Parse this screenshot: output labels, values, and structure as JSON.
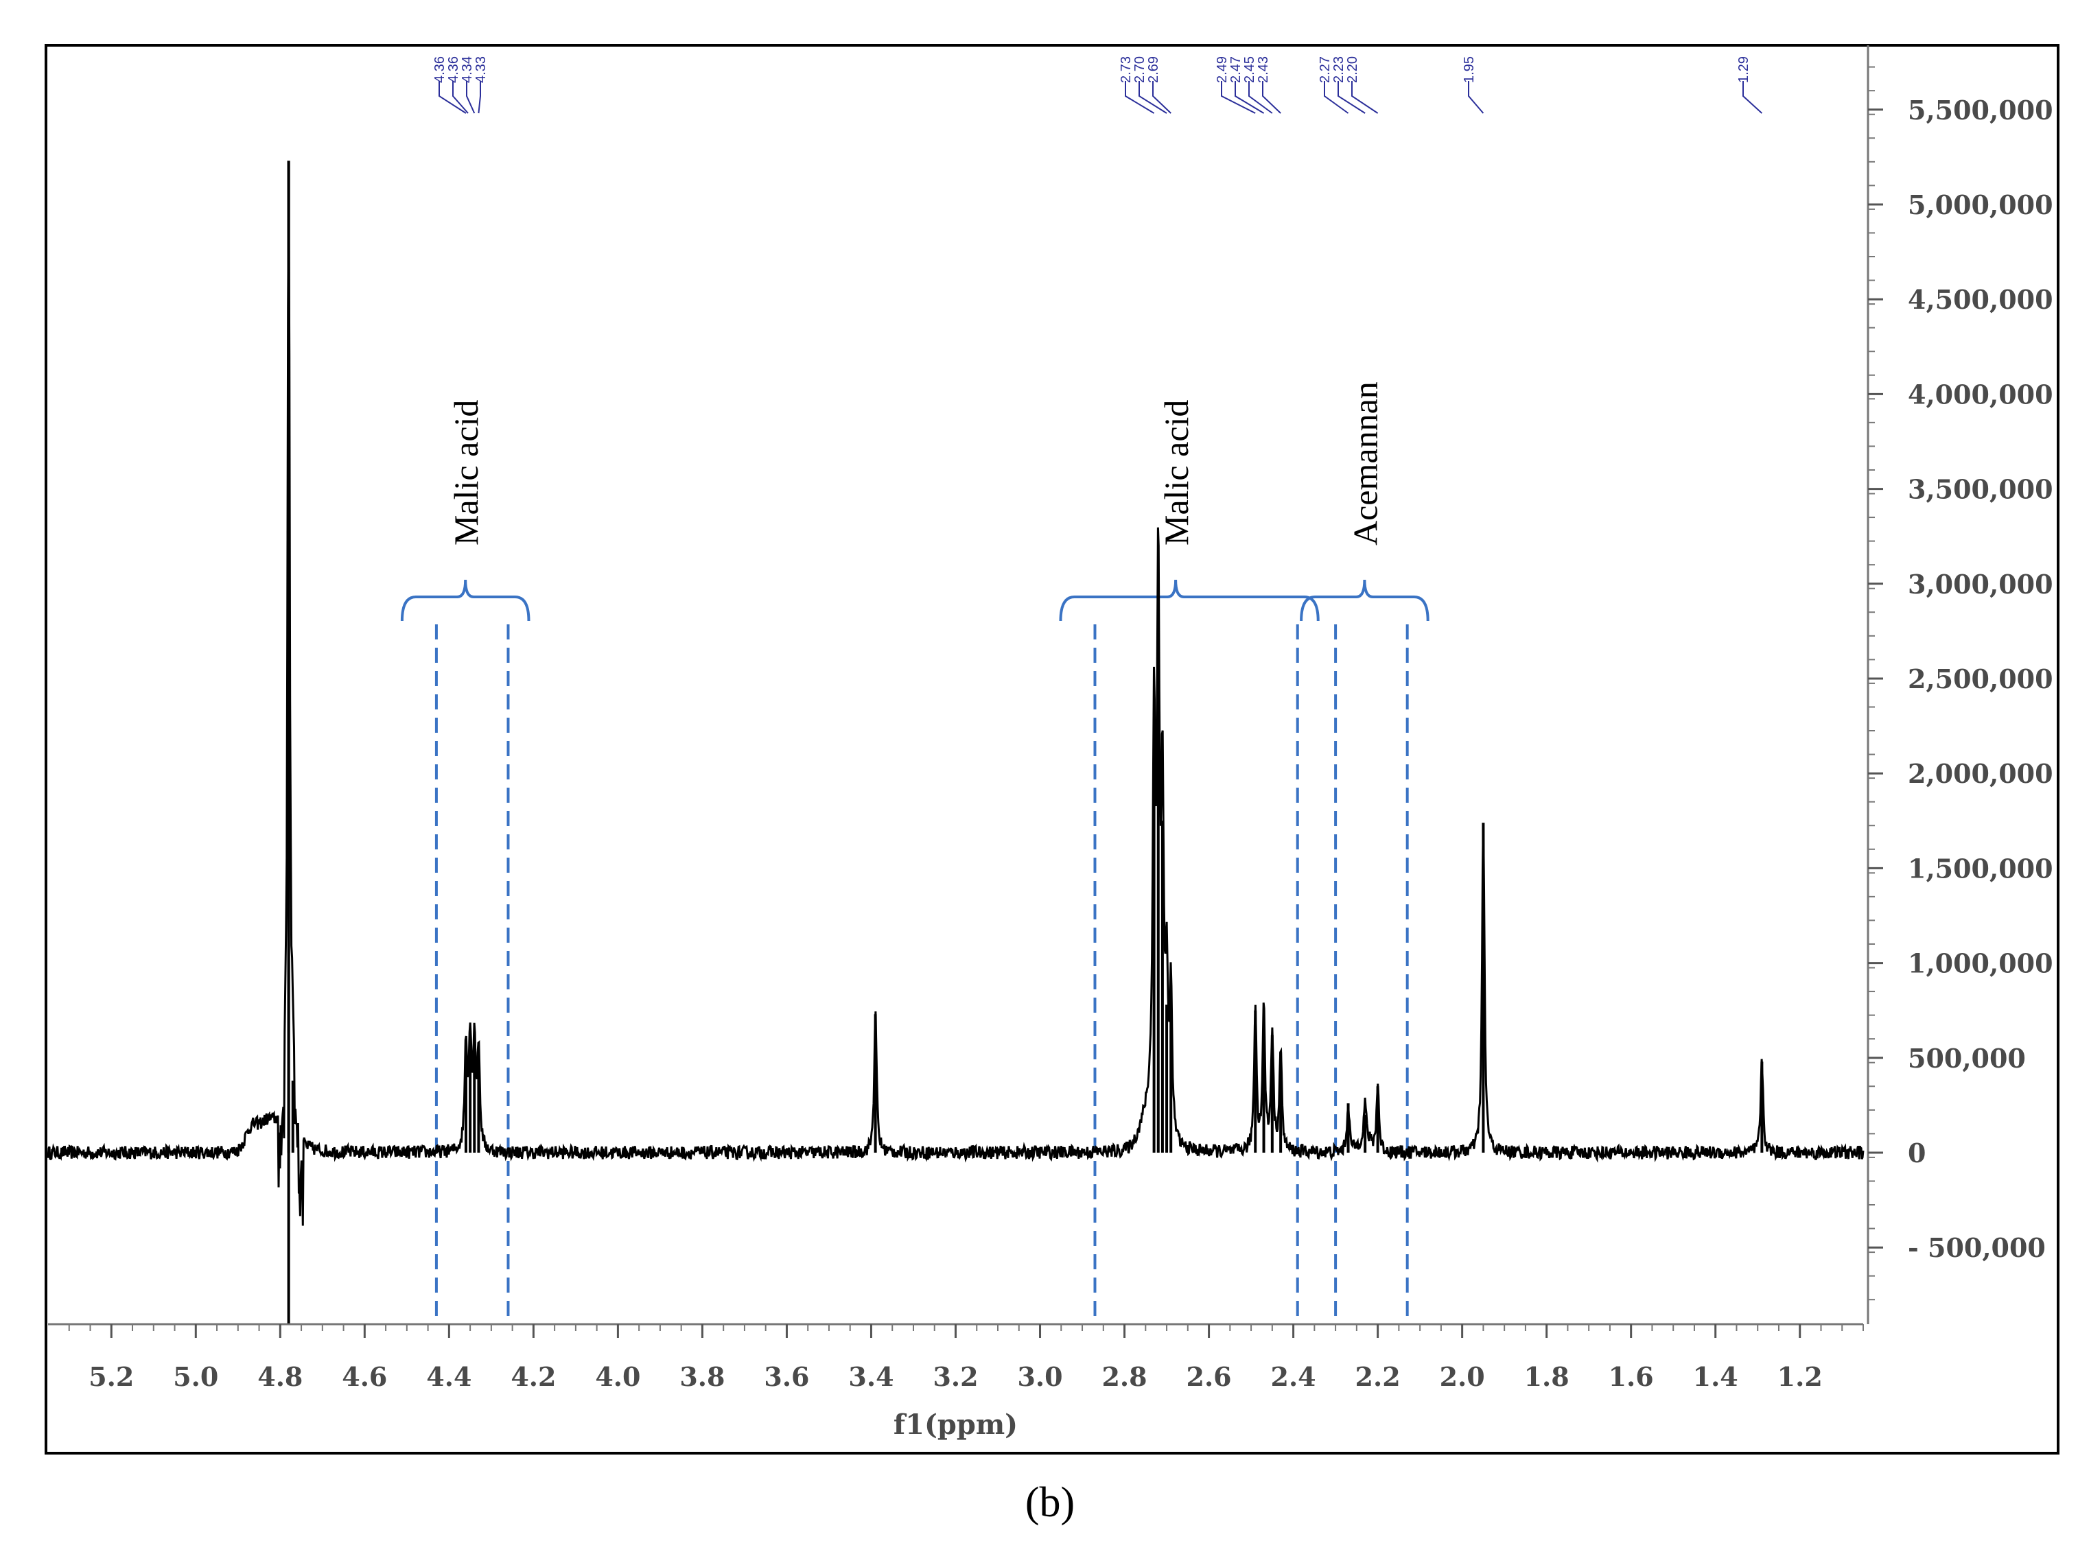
{
  "chart_data": {
    "type": "line",
    "xlabel": "f1(ppm)",
    "ylabel": "",
    "x_reversed": true,
    "xlim": [
      5.35,
      1.05
    ],
    "ylim": [
      -900000,
      5800000
    ],
    "x_ticks": [
      "5.2",
      "5.0",
      "4.8",
      "4.6",
      "4.4",
      "4.2",
      "4.0",
      "3.8",
      "3.6",
      "3.4",
      "3.2",
      "3.0",
      "2.8",
      "2.6",
      "2.4",
      "2.2",
      "2.0",
      "1.8",
      "1.6",
      "1.4",
      "1.2"
    ],
    "y_ticks": [
      "5,500,000",
      "5,000,000",
      "4,500,000",
      "4,000,000",
      "3,500,000",
      "3,000,000",
      "2,500,000",
      "2,000,000",
      "1,500,000",
      "1,000,000",
      "500,000",
      "0",
      "- 500,000"
    ],
    "y_tick_values": [
      5500000,
      5000000,
      4500000,
      4000000,
      3500000,
      3000000,
      2500000,
      2000000,
      1500000,
      1000000,
      500000,
      0,
      -500000
    ],
    "series": [
      {
        "peaks": [
          {
            "x": 4.78,
            "y": 5230000
          },
          {
            "x": 4.77,
            "y": 380000
          },
          {
            "x": 4.36,
            "y": 560000
          },
          {
            "x": 4.35,
            "y": 580000
          },
          {
            "x": 4.34,
            "y": 560000
          },
          {
            "x": 4.33,
            "y": 530000
          },
          {
            "x": 3.39,
            "y": 730000
          },
          {
            "x": 2.73,
            "y": 2030000
          },
          {
            "x": 2.72,
            "y": 2850000
          },
          {
            "x": 2.71,
            "y": 1750000
          },
          {
            "x": 2.7,
            "y": 780000
          },
          {
            "x": 2.69,
            "y": 780000
          },
          {
            "x": 2.49,
            "y": 750000
          },
          {
            "x": 2.47,
            "y": 750000
          },
          {
            "x": 2.45,
            "y": 620000
          },
          {
            "x": 2.43,
            "y": 530000
          },
          {
            "x": 2.27,
            "y": 260000
          },
          {
            "x": 2.23,
            "y": 200000
          },
          {
            "x": 2.2,
            "y": 350000
          },
          {
            "x": 1.95,
            "y": 1740000
          },
          {
            "x": 1.29,
            "y": 480000
          }
        ]
      }
    ],
    "peak_labels": [
      {
        "group": "4.3",
        "labels": [
          "4.36",
          "4.36",
          "4.34",
          "4.33"
        ]
      },
      {
        "group": "2.7",
        "labels": [
          "2.73",
          "2.70",
          "2.69"
        ]
      },
      {
        "group": "2.4",
        "labels": [
          "2.49",
          "2.47",
          "2.45",
          "2.43"
        ]
      },
      {
        "group": "2.2",
        "labels": [
          "2.27",
          "2.23",
          "2.20"
        ]
      },
      {
        "group": "1.95",
        "labels": [
          "1.95"
        ]
      },
      {
        "group": "1.29",
        "labels": [
          "1.29"
        ]
      }
    ],
    "annotations": [
      {
        "text": "Malic acid",
        "range": [
          4.43,
          4.26
        ]
      },
      {
        "text": "Malic acid",
        "range": [
          2.87,
          2.39
        ]
      },
      {
        "text": "Acemannan",
        "range": [
          2.3,
          2.13
        ]
      }
    ],
    "caption": "(b)",
    "colors": {
      "line": "#000000",
      "annotation": "#3a73c4",
      "peak_label": "#2b2f9a"
    }
  }
}
